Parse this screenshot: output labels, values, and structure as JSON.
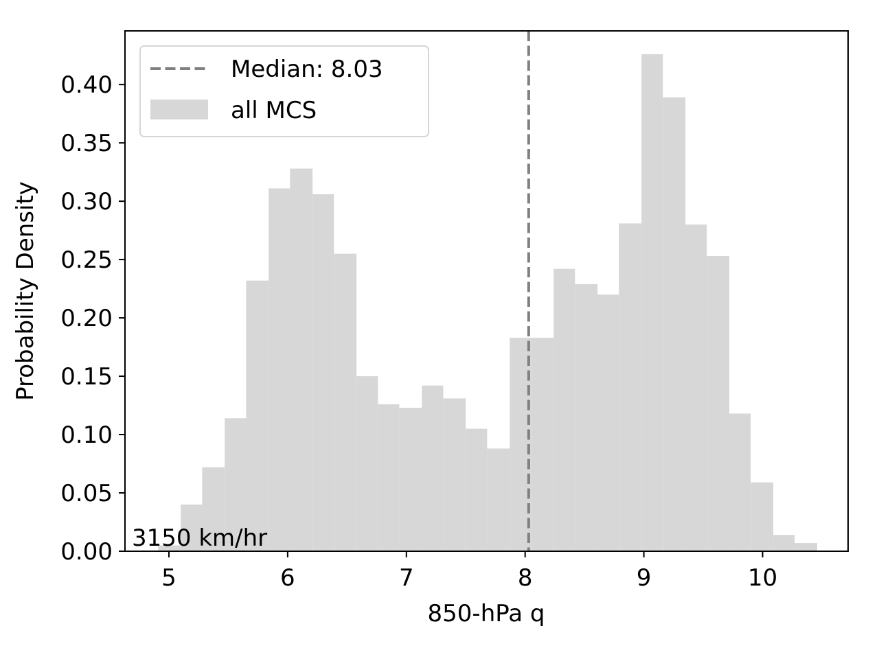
{
  "chart_data": {
    "type": "bar",
    "title": "",
    "xlabel": "850-hPa q",
    "ylabel": "Probability Density",
    "xlim": [
      4.63,
      10.72
    ],
    "ylim": [
      0,
      0.446
    ],
    "xticks": [
      5,
      6,
      7,
      8,
      9,
      10
    ],
    "xtick_labels": [
      "5",
      "6",
      "7",
      "8",
      "9",
      "10"
    ],
    "yticks": [
      0,
      0.05,
      0.1,
      0.15,
      0.2,
      0.25,
      0.3,
      0.35,
      0.4
    ],
    "ytick_labels": [
      "0.00",
      "0.05",
      "0.10",
      "0.15",
      "0.20",
      "0.25",
      "0.30",
      "0.35",
      "0.40"
    ],
    "grid": false,
    "bar_color": "#d7d7d7",
    "median_color": "#808080",
    "bins": [
      {
        "x0": 4.91,
        "x1": 5.1,
        "y": 0.005
      },
      {
        "x0": 5.1,
        "x1": 5.28,
        "y": 0.04
      },
      {
        "x0": 5.28,
        "x1": 5.47,
        "y": 0.072
      },
      {
        "x0": 5.47,
        "x1": 5.65,
        "y": 0.114
      },
      {
        "x0": 5.65,
        "x1": 5.84,
        "y": 0.232
      },
      {
        "x0": 5.84,
        "x1": 6.02,
        "y": 0.311
      },
      {
        "x0": 6.02,
        "x1": 6.21,
        "y": 0.328
      },
      {
        "x0": 6.21,
        "x1": 6.39,
        "y": 0.306
      },
      {
        "x0": 6.39,
        "x1": 6.58,
        "y": 0.255
      },
      {
        "x0": 6.58,
        "x1": 6.76,
        "y": 0.15
      },
      {
        "x0": 6.76,
        "x1": 6.94,
        "y": 0.126
      },
      {
        "x0": 6.94,
        "x1": 7.13,
        "y": 0.123
      },
      {
        "x0": 7.13,
        "x1": 7.31,
        "y": 0.142
      },
      {
        "x0": 7.31,
        "x1": 7.5,
        "y": 0.131
      },
      {
        "x0": 7.5,
        "x1": 7.68,
        "y": 0.105
      },
      {
        "x0": 7.68,
        "x1": 7.87,
        "y": 0.088
      },
      {
        "x0": 7.87,
        "x1": 8.05,
        "y": 0.183
      },
      {
        "x0": 8.05,
        "x1": 8.24,
        "y": 0.183
      },
      {
        "x0": 8.24,
        "x1": 8.42,
        "y": 0.242
      },
      {
        "x0": 8.42,
        "x1": 8.61,
        "y": 0.229
      },
      {
        "x0": 8.61,
        "x1": 8.79,
        "y": 0.22
      },
      {
        "x0": 8.79,
        "x1": 8.98,
        "y": 0.281
      },
      {
        "x0": 8.98,
        "x1": 9.16,
        "y": 0.426
      },
      {
        "x0": 9.16,
        "x1": 9.35,
        "y": 0.389
      },
      {
        "x0": 9.35,
        "x1": 9.53,
        "y": 0.28
      },
      {
        "x0": 9.53,
        "x1": 9.72,
        "y": 0.253
      },
      {
        "x0": 9.72,
        "x1": 9.9,
        "y": 0.118
      },
      {
        "x0": 9.9,
        "x1": 10.09,
        "y": 0.059
      },
      {
        "x0": 10.09,
        "x1": 10.27,
        "y": 0.014
      },
      {
        "x0": 10.27,
        "x1": 10.46,
        "y": 0.007
      }
    ],
    "median": 8.03,
    "legend": {
      "placement": "top-left",
      "median_label": "Median: 8.03",
      "hist_label": "all MCS"
    },
    "annotation": "3150 km/hr"
  }
}
